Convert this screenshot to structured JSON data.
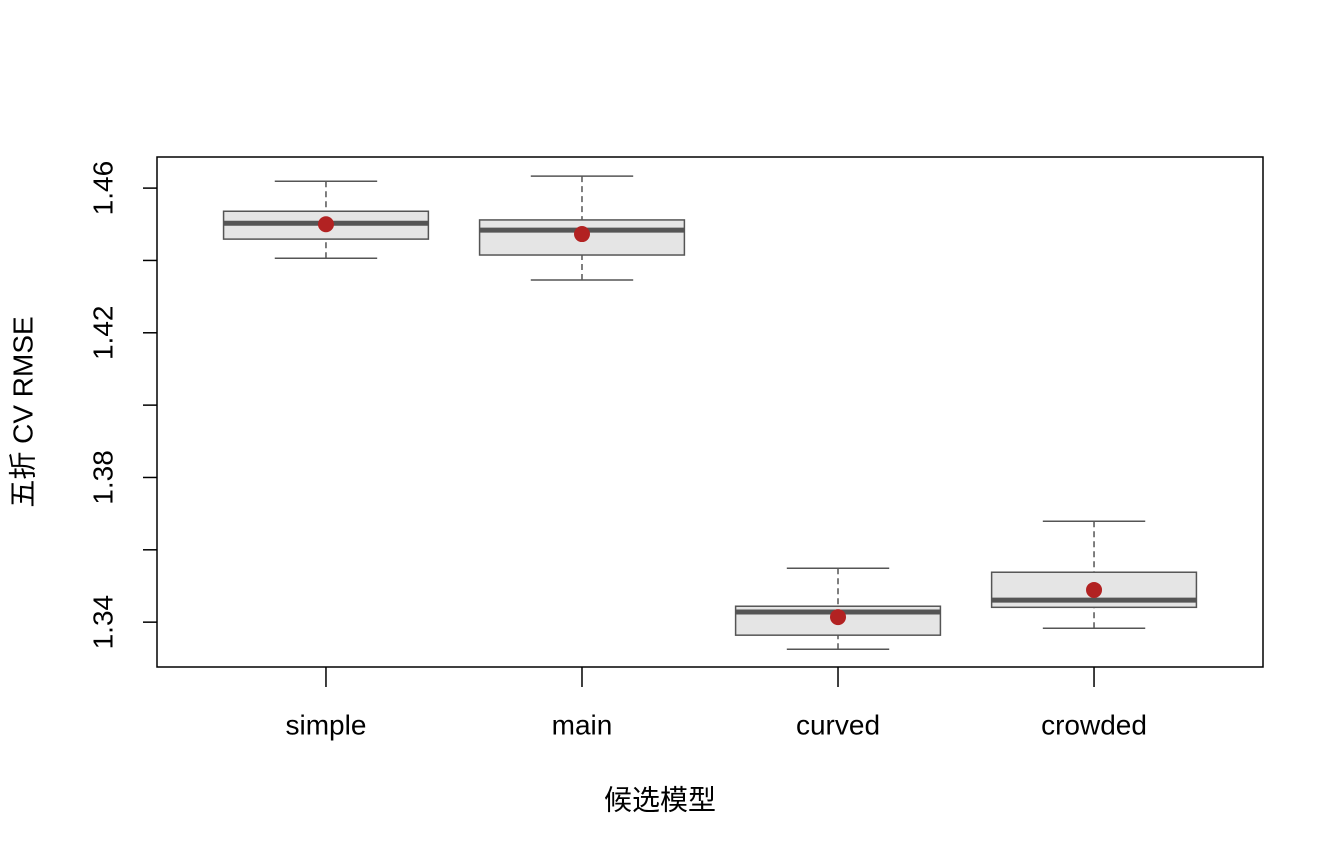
{
  "chart_data": {
    "type": "boxplot",
    "y_label": "五折 CV RMSE",
    "x_label": "候选模型",
    "categories": [
      "simple",
      "main",
      "curved",
      "crowded"
    ],
    "whisker_low": [
      1.4406,
      1.4346,
      1.3325,
      1.3383
    ],
    "q1": [
      1.4459,
      1.4415,
      1.3364,
      1.3441
    ],
    "median": [
      1.4503,
      1.4484,
      1.3428,
      1.3461
    ],
    "q3": [
      1.4536,
      1.4512,
      1.3444,
      1.3538
    ],
    "whisker_high": [
      1.4619,
      1.4633,
      1.3549,
      1.3679
    ],
    "mean": [
      1.45,
      1.4473,
      1.3414,
      1.3489
    ],
    "box_color": "#e5e5e5",
    "mean_color": "#b22222",
    "ylim": [
      1.3276,
      1.4686
    ],
    "yticks": [
      1.34,
      1.38,
      1.42,
      1.46
    ],
    "yminorticks": [
      1.36,
      1.4,
      1.44
    ]
  }
}
